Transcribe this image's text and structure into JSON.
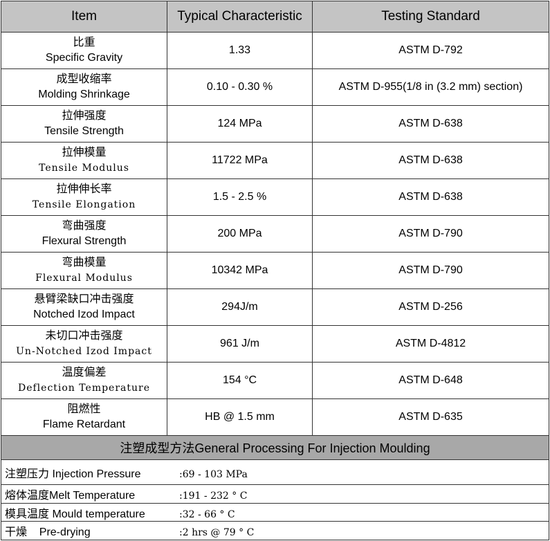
{
  "table": {
    "header": [
      "Item",
      "Typical Characteristic",
      "Testing Standard"
    ],
    "rows": [
      [
        "比重",
        "Specific Gravity",
        "1.33",
        "ASTM D-792"
      ],
      [
        "成型收缩率",
        "Molding Shrinkage",
        "0.10 - 0.30 %",
        "ASTM D-955(1/8 in (3.2 mm) section)"
      ],
      [
        "拉伸强度",
        "Tensile Strength",
        "124 MPa",
        "ASTM D-638"
      ],
      [
        "拉伸模量",
        "Tensile Modulus",
        "11722 MPa",
        "ASTM D-638"
      ],
      [
        "拉伸伸长率",
        "Tensile Elongation",
        "1.5 - 2.5 %",
        "ASTM D-638"
      ],
      [
        "弯曲强度",
        "Flexural Strength",
        "200 MPa",
        "ASTM D-790"
      ],
      [
        "弯曲模量",
        "Flexural Modulus",
        "10342 MPa",
        "ASTM D-790"
      ],
      [
        "悬臂梁缺口冲击强度",
        "Notched Izod Impact",
        "294J/m",
        "ASTM D-256"
      ],
      [
        "未切口冲击强度",
        "Un-Notched Izod Impact",
        "961 J/m",
        "ASTM D-4812"
      ],
      [
        "温度偏差",
        "Deflection Temperature",
        "154 °C",
        "ASTM D-648"
      ],
      [
        "阻燃性",
        "Flame Retardant",
        "HB @ 1.5 mm",
        "ASTM D-635"
      ]
    ],
    "section_title": "注塑成型方法General Processing For Injection Moulding",
    "processing": [
      [
        "注塑压力 Injection Pressure",
        ":69 - 103 MPa"
      ],
      [
        "熔体温度Melt Temperature",
        ":191 - 232 ° C"
      ],
      [
        "模具温度 Mould temperature",
        ":32 - 66 ° C"
      ],
      [
        "干燥    Pre-drying",
        ":2 hrs @ 79 ° C"
      ]
    ]
  }
}
